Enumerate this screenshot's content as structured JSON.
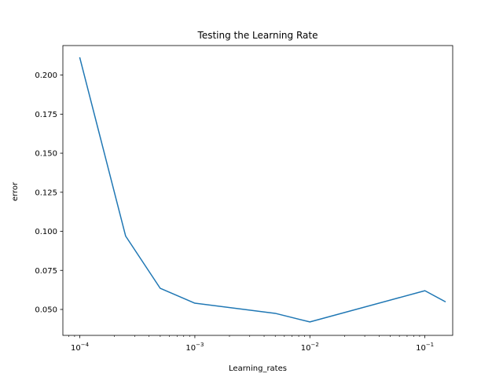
{
  "chart_data": {
    "type": "line",
    "title": "Testing the Learning Rate",
    "xlabel": "Learning_rates",
    "ylabel": "error",
    "xscale": "log",
    "xlim": [
      7.12e-05,
      0.1745
    ],
    "ylim": [
      0.0334,
      0.2189
    ],
    "x_ticks": [
      {
        "value": 0.0001,
        "base": "10",
        "exp": "−4"
      },
      {
        "value": 0.001,
        "base": "10",
        "exp": "−3"
      },
      {
        "value": 0.01,
        "base": "10",
        "exp": "−2"
      },
      {
        "value": 0.1,
        "base": "10",
        "exp": "−1"
      }
    ],
    "y_ticks": [
      0.05,
      0.075,
      0.1,
      0.125,
      0.15,
      0.175,
      0.2
    ],
    "y_tick_labels": [
      "0.050",
      "0.075",
      "0.100",
      "0.125",
      "0.150",
      "0.175",
      "0.200"
    ],
    "grid": false,
    "series": [
      {
        "color": "#1f77b4",
        "x": [
          0.0001,
          0.00025,
          0.0005,
          0.001,
          0.005,
          0.01,
          0.1,
          0.15
        ],
        "y": [
          0.211,
          0.097,
          0.0635,
          0.054,
          0.0475,
          0.042,
          0.062,
          0.055
        ]
      }
    ]
  }
}
